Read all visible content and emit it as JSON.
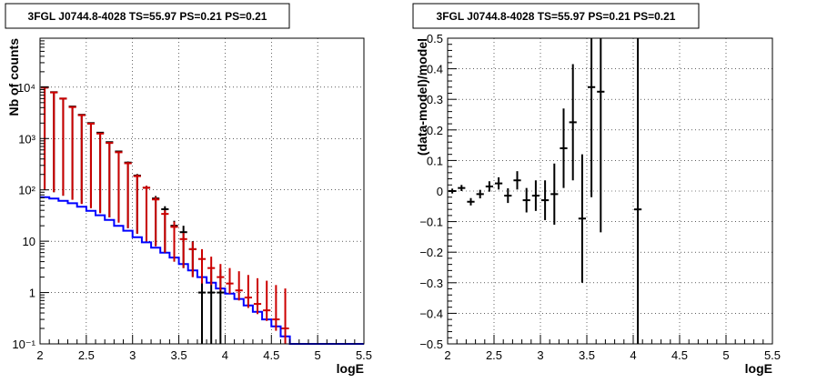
{
  "chart_data": [
    {
      "type": "line",
      "title": "3FGL J0744.8-4028 TS=55.97 PS=0.21 PS=0.21",
      "xlabel": "logE",
      "ylabel": "Nb of counts",
      "log_y": true,
      "grid": true,
      "xlim": [
        2,
        5.5
      ],
      "ylim": [
        0.1,
        90000
      ],
      "x_ticks": [
        "2",
        "2.5",
        "3",
        "3.5",
        "4",
        "4.5",
        "5",
        "5.5"
      ],
      "y_ticks": [
        "10⁻¹",
        "1",
        "10",
        "10²",
        "10³",
        "10⁴"
      ],
      "bin_edges": [
        2.0,
        2.1,
        2.2,
        2.3,
        2.4,
        2.5,
        2.6,
        2.7,
        2.8,
        2.9,
        3.0,
        3.1,
        3.2,
        3.3,
        3.4,
        3.5,
        3.6,
        3.7,
        3.8,
        3.9,
        4.0,
        4.1,
        4.2,
        4.3,
        4.4,
        4.5,
        4.6,
        4.7,
        4.8,
        4.9,
        5.0,
        5.1,
        5.2,
        5.3,
        5.4,
        5.5
      ],
      "series": [
        {
          "style": "histogram",
          "color": "#0000ff",
          "values": [
            72,
            68,
            61,
            55,
            47,
            39,
            32,
            26,
            20,
            16,
            12,
            9.5,
            7.5,
            6,
            4.8,
            3.6,
            2.7,
            2,
            1.55,
            1.2,
            0.95,
            0.75,
            0.56,
            0.42,
            0.3,
            0.22,
            0.14,
            0.1,
            0.1,
            0.1,
            0.1,
            0.1,
            0.1,
            0.1,
            0.1
          ]
        },
        {
          "style": "points",
          "color": "#000000",
          "x": [
            2.05,
            2.15,
            2.25,
            2.35,
            2.45,
            2.55,
            2.65,
            2.75,
            2.85,
            2.95,
            3.05,
            3.15,
            3.25,
            3.35,
            3.45,
            3.55,
            3.65,
            3.75,
            3.85,
            3.95
          ],
          "y": [
            10000,
            8000,
            6000,
            4200,
            2900,
            2000,
            1300,
            850,
            560,
            340,
            190,
            110,
            68,
            42,
            20,
            15,
            7,
            1,
            1,
            1
          ],
          "yerr_low": [
            9900,
            7910,
            5923,
            4135,
            2846,
            1955,
            1264,
            821,
            536,
            322,
            176,
            100,
            60,
            36,
            16,
            12,
            5,
            0.9,
            0.9,
            0.9
          ],
          "yerr_high": [
            10100,
            8090,
            6077,
            4265,
            2954,
            2045,
            1336,
            879,
            584,
            358,
            204,
            120,
            76,
            48,
            25,
            20,
            10,
            2.8,
            2.8,
            2.8
          ]
        },
        {
          "style": "points",
          "color": "#cc0000",
          "x": [
            2.05,
            2.15,
            2.25,
            2.35,
            2.45,
            2.55,
            2.65,
            2.75,
            2.85,
            2.95,
            3.05,
            3.15,
            3.25,
            3.35,
            3.45,
            3.55,
            3.65,
            3.75,
            3.85,
            3.95,
            4.05,
            4.15,
            4.25,
            4.35,
            4.45,
            4.55,
            4.65
          ],
          "y": [
            9800,
            7900,
            6000,
            4100,
            2850,
            1950,
            1250,
            820,
            540,
            330,
            185,
            110,
            65,
            34,
            19,
            11,
            7,
            4.5,
            3,
            2,
            1.5,
            1.1,
            0.8,
            0.6,
            0.45,
            0.3,
            0.2
          ],
          "yerr_low": [
            9700,
            7810,
            5923,
            4036,
            2797,
            1906,
            1215,
            791,
            517,
            312,
            171,
            100,
            57,
            28,
            15,
            8,
            5,
            3,
            1.6,
            0.9,
            0.55,
            0.4,
            0.3,
            0.22,
            0.17,
            0.12,
            0.1
          ],
          "yerr_high": [
            9900,
            7990,
            6077,
            4164,
            2903,
            1994,
            1285,
            849,
            563,
            348,
            199,
            120,
            73,
            40,
            24,
            14.5,
            9.8,
            7,
            5,
            3.6,
            3,
            2.6,
            2.2,
            1.9,
            1.7,
            1.4,
            1.2
          ]
        }
      ]
    },
    {
      "type": "scatter",
      "title": "3FGL J0744.8-4028 TS=55.97 PS=0.21 PS=0.21",
      "xlabel": "logE",
      "ylabel": "(data-model)/model",
      "grid": true,
      "xlim": [
        2,
        5.5
      ],
      "ylim": [
        -0.5,
        0.5
      ],
      "x_ticks": [
        "2",
        "2.5",
        "3",
        "3.5",
        "4",
        "4.5",
        "5",
        "5.5"
      ],
      "y_ticks": [
        "−0.5",
        "−0.4",
        "−0.3",
        "−0.2",
        "−0.1",
        "0",
        "0.1",
        "0.2",
        "0.3",
        "0.4",
        "0.5"
      ],
      "series": [
        {
          "color": "#000000",
          "x": [
            2.05,
            2.15,
            2.25,
            2.35,
            2.45,
            2.55,
            2.65,
            2.75,
            2.85,
            2.95,
            3.05,
            3.15,
            3.25,
            3.35,
            3.45,
            3.55,
            3.65,
            4.05
          ],
          "y": [
            0.0,
            0.01,
            -0.035,
            -0.01,
            0.015,
            0.025,
            -0.015,
            0.035,
            -0.03,
            -0.015,
            -0.03,
            -0.01,
            0.14,
            0.225,
            -0.09,
            0.34,
            0.325,
            -0.06
          ],
          "yerr": [
            0.008,
            0.01,
            0.012,
            0.014,
            0.017,
            0.02,
            0.024,
            0.03,
            0.04,
            0.05,
            0.065,
            0.1,
            0.13,
            0.19,
            0.21,
            0.36,
            0.46,
            0.6
          ]
        }
      ]
    }
  ]
}
